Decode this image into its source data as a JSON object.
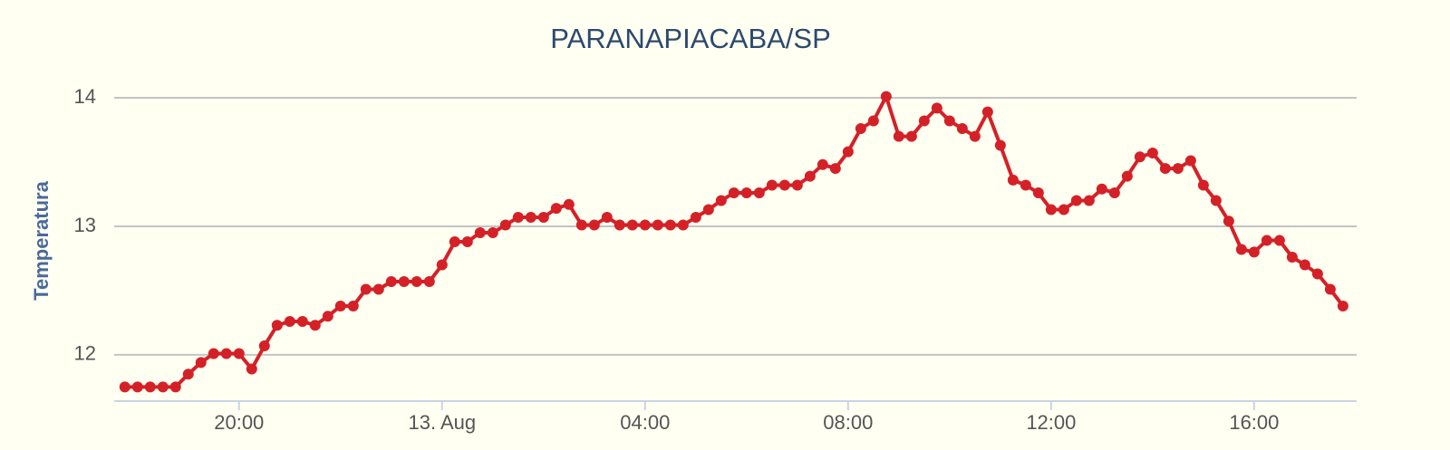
{
  "chart_data": {
    "type": "line",
    "title": "PARANAPIACABA/SP",
    "y_label": "Temperatura",
    "color": "#d42127",
    "grid": true,
    "x": [
      17.75,
      18,
      18.25,
      18.5,
      18.75,
      19,
      19.25,
      19.5,
      19.75,
      20,
      20.25,
      20.5,
      20.75,
      21,
      21.25,
      21.5,
      21.75,
      22,
      22.25,
      22.5,
      22.75,
      23,
      23.25,
      23.5,
      23.75,
      24,
      24.25,
      24.5,
      24.75,
      25,
      25.25,
      25.5,
      25.75,
      26,
      26.25,
      26.5,
      26.75,
      27,
      27.25,
      27.5,
      27.75,
      28,
      28.25,
      28.5,
      28.75,
      29,
      29.25,
      29.5,
      29.75,
      30,
      30.25,
      30.5,
      30.75,
      31,
      31.25,
      31.5,
      31.75,
      32,
      32.25,
      32.5,
      32.75,
      33,
      33.25,
      33.5,
      33.75,
      34,
      34.25,
      34.5,
      34.75,
      35,
      35.25,
      35.5,
      35.75,
      36,
      36.25,
      36.5,
      36.75,
      37,
      37.25,
      37.5,
      37.75,
      38,
      38.25,
      38.5,
      38.75,
      39,
      39.25,
      39.5,
      39.75,
      40,
      40.25,
      40.5,
      40.75,
      41,
      41.25,
      41.5,
      41.75
    ],
    "values": [
      11.75,
      11.75,
      11.75,
      11.75,
      11.75,
      11.85,
      11.94,
      12.01,
      12.01,
      12.01,
      11.89,
      12.07,
      12.23,
      12.26,
      12.26,
      12.23,
      12.3,
      12.38,
      12.38,
      12.51,
      12.51,
      12.57,
      12.57,
      12.57,
      12.57,
      12.7,
      12.88,
      12.88,
      12.95,
      12.95,
      13.01,
      13.07,
      13.07,
      13.07,
      13.14,
      13.17,
      13.01,
      13.01,
      13.07,
      13.01,
      13.01,
      13.01,
      13.01,
      13.01,
      13.01,
      13.07,
      13.13,
      13.2,
      13.26,
      13.26,
      13.26,
      13.32,
      13.32,
      13.32,
      13.39,
      13.48,
      13.45,
      13.58,
      13.76,
      13.82,
      14.01,
      13.7,
      13.7,
      13.82,
      13.92,
      13.82,
      13.76,
      13.7,
      13.89,
      13.63,
      13.36,
      13.32,
      13.26,
      13.13,
      13.13,
      13.2,
      13.2,
      13.29,
      13.26,
      13.39,
      13.54,
      13.57,
      13.45,
      13.45,
      13.51,
      13.32,
      13.2,
      13.04,
      12.82,
      12.8,
      12.89,
      12.89,
      12.76,
      12.7,
      12.63,
      12.51,
      12.38
    ],
    "xlim": [
      17.54,
      42.02
    ],
    "xticks": [
      {
        "value": 20,
        "label": "20:00"
      },
      {
        "value": 24,
        "label": "13. Aug"
      },
      {
        "value": 28,
        "label": "04:00"
      },
      {
        "value": 32,
        "label": "08:00"
      },
      {
        "value": 36,
        "label": "12:00"
      },
      {
        "value": 40,
        "label": "16:00"
      }
    ],
    "ylim": [
      11.64,
      14.2
    ],
    "yticks": [
      12,
      13,
      14
    ]
  }
}
